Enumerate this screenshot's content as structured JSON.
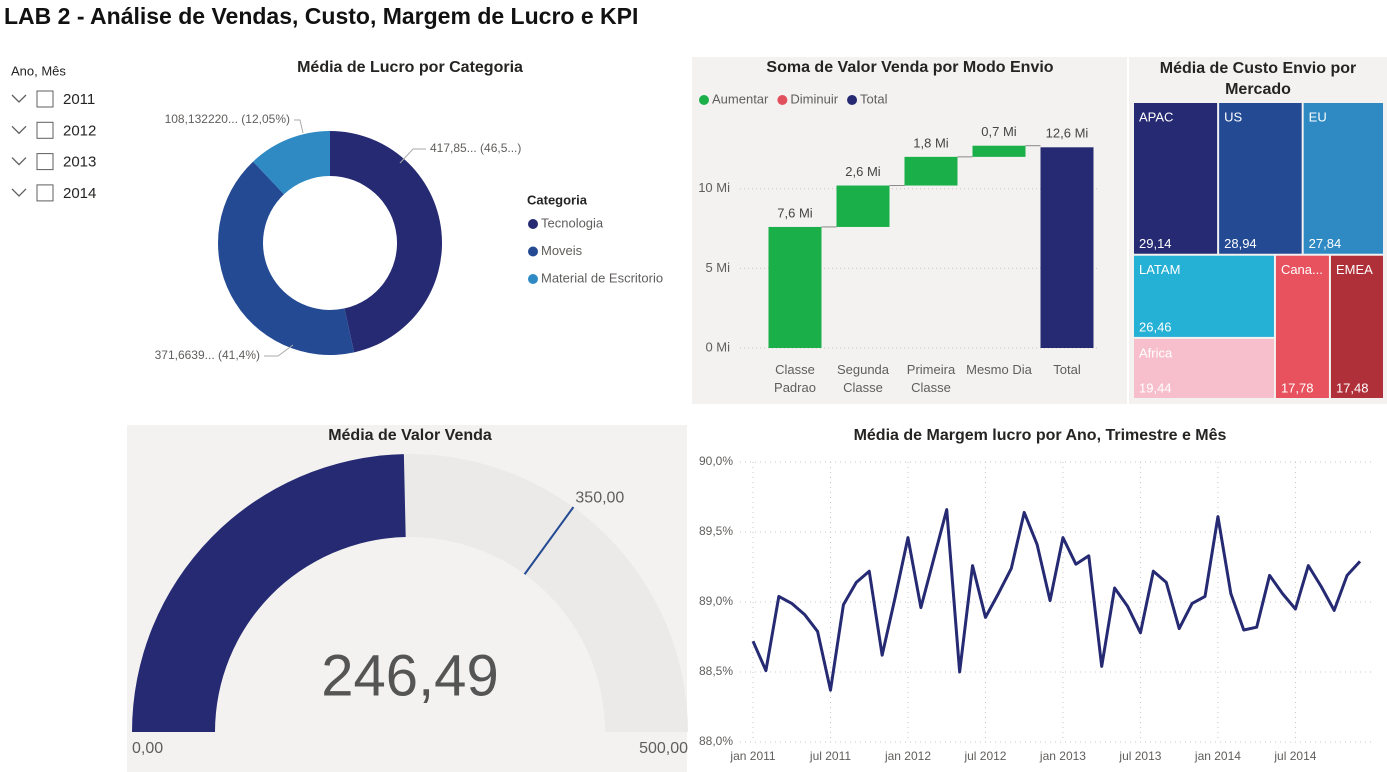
{
  "title": "LAB 2 - Análise de Vendas, Custo, Margem de Lucro e KPI",
  "slicer": {
    "title": "Ano, Mês",
    "items": [
      "2011",
      "2012",
      "2013",
      "2014"
    ]
  },
  "chart_data": [
    {
      "type": "donut",
      "title": "Média de Lucro por Categoria",
      "legend_title": "Categoria",
      "categories": [
        "Tecnologia",
        "Moveis",
        "Material de Escritorio"
      ],
      "values": [
        417.85,
        371.6639,
        108.13222
      ],
      "value_labels": [
        "417,85... (46,5...)",
        "371,6639... (41,4%)",
        "108,132220... (12,05%)"
      ],
      "colors": [
        "#252a73",
        "#234a93",
        "#2f8ac4"
      ],
      "legend": "right"
    },
    {
      "type": "waterfall",
      "title": "Soma de Valor Venda por Modo Envio",
      "legend": [
        {
          "name": "Aumentar",
          "color": "#1aaf48"
        },
        {
          "name": "Diminuir",
          "color": "#e0515d"
        },
        {
          "name": "Total",
          "color": "#252a73"
        }
      ],
      "categories": [
        "Classe Padrao",
        "Segunda Classe",
        "Primeira Classe",
        "Mesmo Dia",
        "Total"
      ],
      "values": [
        7.6,
        2.6,
        1.8,
        0.7,
        12.6
      ],
      "value_labels": [
        "7,6 Mi",
        "2,6 Mi",
        "1,8 Mi",
        "0,7 Mi",
        "12,6 Mi"
      ],
      "measure": [
        "relative",
        "relative",
        "relative",
        "relative",
        "total"
      ],
      "ylim": [
        0,
        14
      ],
      "yticks": [
        {
          "value": 0,
          "label": "0 Mi"
        },
        {
          "value": 5,
          "label": "5 Mi"
        },
        {
          "value": 10,
          "label": "10 Mi"
        }
      ],
      "grid": true
    },
    {
      "type": "treemap",
      "title": "Média de Custo Envio por Mercado",
      "categories": [
        "APAC",
        "US",
        "EU",
        "LATAM",
        "Africa",
        "Cana...",
        "EMEA"
      ],
      "values": [
        29.14,
        28.94,
        27.84,
        26.46,
        19.44,
        17.78,
        17.48
      ],
      "value_labels": [
        "29,14",
        "28,94",
        "27,84",
        "26,46",
        "19,44",
        "17,78",
        "17,48"
      ],
      "colors": [
        "#252a73",
        "#234a93",
        "#2f8ac4",
        "#25b0d6",
        "#f7bfcb",
        "#e8525e",
        "#b0303a"
      ]
    },
    {
      "type": "gauge",
      "title": "Média de Valor Venda",
      "value": 246.49,
      "value_label": "246,49",
      "ylim": [
        0,
        500
      ],
      "yticks": [
        {
          "value": 0,
          "label": "0,00"
        },
        {
          "value": 500,
          "label": "500,00"
        }
      ],
      "target": 350,
      "target_label": "350,00",
      "color": "#252a73",
      "track_color": "#ebeae9"
    },
    {
      "type": "line",
      "title": "Média de Margem lucro por Ano, Trimestre e Mês",
      "x": [
        "2011-01",
        "2011-02",
        "2011-03",
        "2011-04",
        "2011-05",
        "2011-06",
        "2011-07",
        "2011-08",
        "2011-09",
        "2011-10",
        "2011-11",
        "2011-12",
        "2012-01",
        "2012-02",
        "2012-03",
        "2012-04",
        "2012-05",
        "2012-06",
        "2012-07",
        "2012-08",
        "2012-09",
        "2012-10",
        "2012-11",
        "2012-12",
        "2013-01",
        "2013-02",
        "2013-03",
        "2013-04",
        "2013-05",
        "2013-06",
        "2013-07",
        "2013-08",
        "2013-09",
        "2013-10",
        "2013-11",
        "2013-12",
        "2014-01",
        "2014-02",
        "2014-03",
        "2014-04",
        "2014-05",
        "2014-06",
        "2014-07",
        "2014-08",
        "2014-09",
        "2014-10",
        "2014-11",
        "2014-12"
      ],
      "values": [
        88.72,
        88.51,
        89.04,
        88.99,
        88.91,
        88.79,
        88.37,
        88.98,
        89.14,
        89.22,
        88.62,
        89.03,
        89.46,
        88.96,
        89.31,
        89.66,
        88.5,
        89.26,
        88.89,
        89.06,
        89.24,
        89.64,
        89.41,
        89.01,
        89.46,
        89.27,
        89.33,
        88.54,
        89.1,
        88.97,
        88.78,
        89.22,
        89.14,
        88.81,
        88.99,
        89.04,
        89.61,
        89.06,
        88.8,
        88.82,
        89.19,
        89.06,
        88.95,
        89.26,
        89.11,
        88.94,
        89.19,
        89.29
      ],
      "color": "#252a73",
      "ylim": [
        88,
        90
      ],
      "yticks": [
        {
          "value": 88,
          "label": "88,0%"
        },
        {
          "value": 88.5,
          "label": "88,5%"
        },
        {
          "value": 89,
          "label": "89,0%"
        },
        {
          "value": 89.5,
          "label": "89,5%"
        },
        {
          "value": 90,
          "label": "90,0%"
        }
      ],
      "xticks": [
        {
          "value": "2011-01",
          "label": "jan 2011"
        },
        {
          "value": "2011-07",
          "label": "jul 2011"
        },
        {
          "value": "2012-01",
          "label": "jan 2012"
        },
        {
          "value": "2012-07",
          "label": "jul 2012"
        },
        {
          "value": "2013-01",
          "label": "jan 2013"
        },
        {
          "value": "2013-07",
          "label": "jul 2013"
        },
        {
          "value": "2014-01",
          "label": "jan 2014"
        },
        {
          "value": "2014-07",
          "label": "jul 2014"
        }
      ],
      "grid": true
    }
  ]
}
